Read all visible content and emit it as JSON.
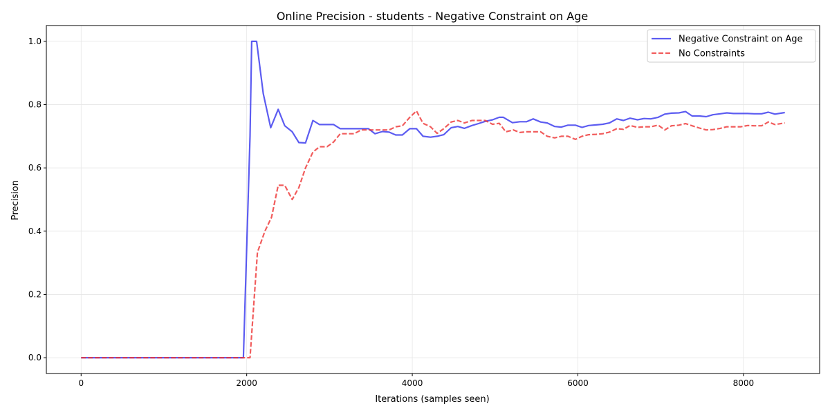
{
  "chart_data": {
    "type": "line",
    "title": "Online Precision - students - Negative Constraint on Age",
    "xlabel": "Iterations (samples seen)",
    "ylabel": "Precision",
    "xlim": [
      -420,
      8920
    ],
    "ylim": [
      -0.05,
      1.05
    ],
    "xticks": [
      0,
      2000,
      4000,
      6000,
      8000
    ],
    "xtick_labels": [
      "0",
      "2000",
      "4000",
      "6000",
      "8000"
    ],
    "yticks": [
      0.0,
      0.2,
      0.4,
      0.6,
      0.8,
      1.0
    ],
    "ytick_labels": [
      "0.0",
      "0.2",
      "0.4",
      "0.6",
      "0.8",
      "1.0"
    ],
    "grid": true,
    "legend_position": "upper right",
    "series": [
      {
        "name": "Negative Constraint on Age",
        "color": "#3333ee",
        "style": "solid",
        "x": [
          0,
          1960,
          2040,
          2060,
          2120,
          2200,
          2290,
          2380,
          2460,
          2550,
          2630,
          2710,
          2800,
          2880,
          2970,
          3050,
          3130,
          3220,
          3300,
          3380,
          3470,
          3550,
          3640,
          3720,
          3800,
          3880,
          3970,
          4050,
          4130,
          4220,
          4300,
          4380,
          4470,
          4550,
          4630,
          4720,
          4800,
          4880,
          4970,
          5050,
          5100,
          5210,
          5300,
          5380,
          5460,
          5550,
          5630,
          5720,
          5800,
          5880,
          5970,
          6050,
          6130,
          6220,
          6300,
          6380,
          6470,
          6550,
          6630,
          6720,
          6800,
          6880,
          6970,
          7050,
          7130,
          7220,
          7300,
          7380,
          7470,
          7550,
          7630,
          7720,
          7800,
          7880,
          7970,
          8050,
          8130,
          8220,
          8300,
          8380,
          8500
        ],
        "y": [
          0,
          0,
          0.7,
          1.0,
          1.0,
          0.835,
          0.727,
          0.785,
          0.733,
          0.714,
          0.68,
          0.679,
          0.75,
          0.737,
          0.737,
          0.737,
          0.724,
          0.724,
          0.724,
          0.724,
          0.724,
          0.708,
          0.715,
          0.713,
          0.704,
          0.704,
          0.724,
          0.724,
          0.7,
          0.697,
          0.7,
          0.705,
          0.727,
          0.731,
          0.725,
          0.734,
          0.74,
          0.747,
          0.752,
          0.76,
          0.76,
          0.743,
          0.746,
          0.746,
          0.755,
          0.745,
          0.742,
          0.731,
          0.729,
          0.735,
          0.735,
          0.728,
          0.734,
          0.736,
          0.738,
          0.742,
          0.755,
          0.75,
          0.757,
          0.752,
          0.756,
          0.755,
          0.76,
          0.77,
          0.773,
          0.774,
          0.778,
          0.764,
          0.764,
          0.762,
          0.768,
          0.771,
          0.774,
          0.772,
          0.772,
          0.772,
          0.771,
          0.771,
          0.776,
          0.77,
          0.775
        ]
      },
      {
        "name": "No Constraints",
        "color": "#ee3333",
        "style": "dashed",
        "x": [
          0,
          2040,
          2130,
          2220,
          2300,
          2380,
          2460,
          2550,
          2630,
          2710,
          2800,
          2880,
          2970,
          3050,
          3130,
          3220,
          3300,
          3380,
          3470,
          3550,
          3640,
          3720,
          3800,
          3880,
          3970,
          4050,
          4130,
          4220,
          4300,
          4380,
          4470,
          4550,
          4630,
          4720,
          4800,
          4880,
          4970,
          5050,
          5130,
          5220,
          5300,
          5380,
          5470,
          5550,
          5630,
          5720,
          5800,
          5880,
          5970,
          6050,
          6130,
          6220,
          6300,
          6380,
          6470,
          6550,
          6630,
          6720,
          6800,
          6880,
          6970,
          7050,
          7130,
          7220,
          7300,
          7380,
          7470,
          7550,
          7630,
          7720,
          7800,
          7880,
          7970,
          8050,
          8130,
          8220,
          8300,
          8380,
          8500
        ],
        "y": [
          0,
          0,
          0.333,
          0.4,
          0.444,
          0.545,
          0.545,
          0.5,
          0.538,
          0.6,
          0.65,
          0.667,
          0.667,
          0.682,
          0.708,
          0.708,
          0.708,
          0.72,
          0.72,
          0.72,
          0.72,
          0.72,
          0.73,
          0.733,
          0.76,
          0.78,
          0.741,
          0.73,
          0.709,
          0.724,
          0.745,
          0.75,
          0.742,
          0.75,
          0.75,
          0.75,
          0.738,
          0.741,
          0.714,
          0.72,
          0.712,
          0.714,
          0.714,
          0.714,
          0.7,
          0.695,
          0.7,
          0.7,
          0.69,
          0.7,
          0.705,
          0.706,
          0.708,
          0.713,
          0.724,
          0.722,
          0.734,
          0.728,
          0.73,
          0.73,
          0.735,
          0.72,
          0.733,
          0.735,
          0.74,
          0.733,
          0.726,
          0.72,
          0.721,
          0.725,
          0.73,
          0.73,
          0.73,
          0.734,
          0.733,
          0.733,
          0.745,
          0.737,
          0.742
        ]
      }
    ]
  }
}
